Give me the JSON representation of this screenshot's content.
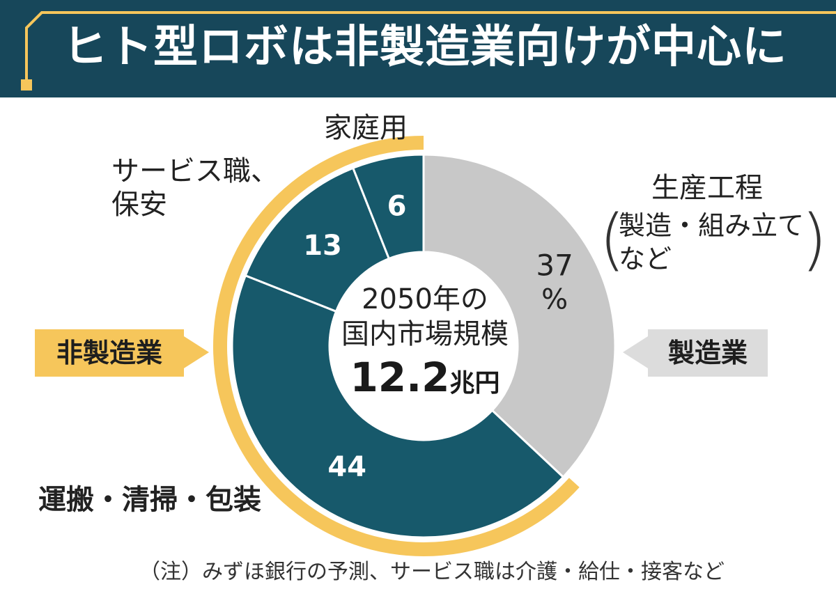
{
  "title": "ヒト型ロボは非製造業向けが中心に",
  "center": {
    "line1": "2050年の",
    "line2": "国内市場規模",
    "value": "12.2",
    "unit": "兆円"
  },
  "group_tags": {
    "non_manufacturing": "非製造業",
    "manufacturing": "製造業"
  },
  "labels": {
    "home": "家庭用",
    "service": "サービス職、保安",
    "transport": "運搬・清掃・包装",
    "production": "生産工程",
    "production_detail": "製造・組み立てなど"
  },
  "note": "（注）みずほ銀行の予測、サービス職は介護・給仕・接客など",
  "colors": {
    "header": "#17475a",
    "accent_gold": "#f6c65b",
    "dark_segment": "#17596b",
    "gray_segment": "#c8c8c8",
    "gray_tag": "#dcdcdc"
  },
  "chart_data": {
    "type": "pie",
    "donut": true,
    "unit": "%",
    "slices": [
      {
        "category": "生産工程",
        "value": 37,
        "value_label": "37",
        "unit_label": "%",
        "group": "製造業",
        "color": "#c8c8c8"
      },
      {
        "category": "運搬・清掃・包装",
        "value": 44,
        "value_label": "44",
        "group": "非製造業",
        "color": "#17596b"
      },
      {
        "category": "サービス職、保安",
        "value": 13,
        "value_label": "13",
        "group": "非製造業",
        "color": "#17596b"
      },
      {
        "category": "家庭用",
        "value": 6,
        "value_label": "6",
        "group": "非製造業",
        "color": "#17596b"
      }
    ],
    "groups": [
      {
        "name": "製造業",
        "slices": [
          "生産工程"
        ]
      },
      {
        "name": "非製造業",
        "slices": [
          "運搬・清掃・包装",
          "サービス職、保安",
          "家庭用"
        ]
      }
    ]
  }
}
